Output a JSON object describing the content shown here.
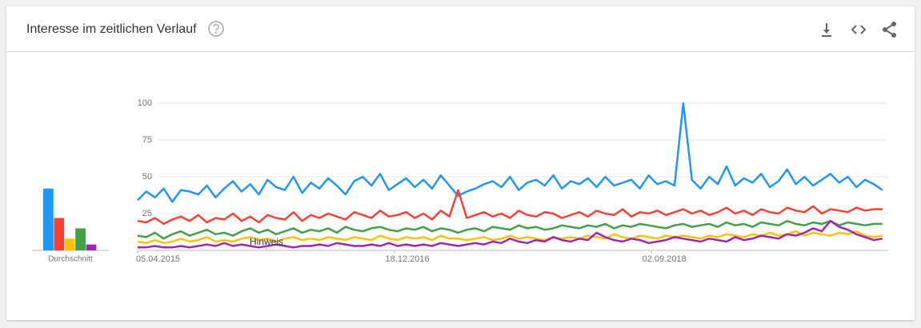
{
  "chart_data": [
    {
      "type": "bar",
      "xlabel": "Durchschnitt",
      "values": [
        42,
        22,
        8,
        15,
        4
      ],
      "colors": [
        "#2196f3",
        "#f44336",
        "#ffc107",
        "#43a047",
        "#9c27b0"
      ],
      "ylim": [
        0,
        100
      ]
    },
    {
      "type": "line",
      "title": "Interesse im zeitlichen Verlauf",
      "annotation": "Hinweis",
      "x": [
        0,
        3,
        6,
        9,
        12,
        15,
        18,
        21,
        24,
        27,
        30,
        33,
        36,
        39,
        42,
        45,
        48,
        51,
        54,
        57,
        60,
        63,
        66,
        69,
        72,
        75,
        78,
        81,
        84,
        87,
        90,
        93,
        96,
        99,
        102,
        105,
        108,
        111,
        114,
        117,
        120,
        123,
        126,
        129,
        132,
        135,
        138,
        141,
        144,
        147,
        150,
        153,
        156,
        159,
        162,
        165,
        168,
        171,
        174,
        177,
        180,
        183,
        186,
        189,
        192,
        195,
        198,
        201,
        204,
        207,
        210,
        213,
        216,
        219,
        222,
        225,
        228,
        231,
        234,
        237,
        240,
        243,
        246,
        249,
        252,
        255,
        258
      ],
      "xlim": [
        0,
        260
      ],
      "xticks": [
        {
          "value": 0,
          "label": "05.04.2015"
        },
        {
          "value": 89,
          "label": "18.12.2016"
        },
        {
          "value": 178,
          "label": "02.09.2018"
        }
      ],
      "ylim": [
        0,
        100
      ],
      "yticks": [
        25,
        50,
        75,
        100
      ],
      "grid": true,
      "series": [
        {
          "color": "#2196f3",
          "values": [
            34,
            40,
            36,
            42,
            33,
            41,
            40,
            38,
            44,
            36,
            42,
            47,
            40,
            45,
            38,
            48,
            43,
            41,
            50,
            39,
            46,
            42,
            49,
            44,
            38,
            47,
            50,
            44,
            52,
            41,
            45,
            49,
            43,
            48,
            42,
            51,
            44,
            37,
            40,
            42,
            45,
            47,
            43,
            50,
            41,
            46,
            48,
            44,
            51,
            42,
            47,
            45,
            49,
            43,
            50,
            44,
            46,
            48,
            42,
            51,
            45,
            47,
            44,
            100,
            48,
            42,
            50,
            45,
            57,
            44,
            49,
            46,
            52,
            43,
            47,
            55,
            45,
            50,
            44,
            48,
            52,
            46,
            50,
            43,
            48,
            45,
            41
          ]
        },
        {
          "color": "#f44336",
          "values": [
            20,
            19,
            22,
            18,
            21,
            23,
            20,
            24,
            19,
            22,
            21,
            25,
            20,
            23,
            19,
            24,
            22,
            21,
            26,
            20,
            24,
            22,
            25,
            23,
            21,
            26,
            24,
            22,
            27,
            23,
            24,
            26,
            22,
            25,
            21,
            27,
            23,
            41,
            22,
            24,
            26,
            23,
            25,
            22,
            27,
            24,
            23,
            26,
            25,
            22,
            24,
            26,
            23,
            27,
            25,
            24,
            28,
            23,
            26,
            25,
            27,
            24,
            26,
            28,
            25,
            27,
            24,
            26,
            29,
            25,
            27,
            24,
            28,
            26,
            25,
            29,
            27,
            26,
            30,
            25,
            28,
            27,
            26,
            29,
            27,
            28,
            28
          ]
        },
        {
          "color": "#ffc107",
          "values": [
            6,
            5,
            7,
            5,
            6,
            8,
            6,
            7,
            9,
            6,
            7,
            6,
            8,
            9,
            7,
            8,
            6,
            8,
            9,
            7,
            8,
            7,
            9,
            8,
            7,
            9,
            8,
            7,
            10,
            8,
            7,
            9,
            8,
            9,
            7,
            10,
            8,
            8,
            7,
            8,
            9,
            7,
            8,
            10,
            8,
            9,
            8,
            7,
            9,
            8,
            9,
            8,
            10,
            9,
            8,
            11,
            9,
            8,
            10,
            9,
            8,
            10,
            9,
            10,
            9,
            8,
            10,
            9,
            11,
            10,
            9,
            11,
            10,
            12,
            10,
            11,
            13,
            10,
            12,
            11,
            10,
            12,
            11,
            13,
            10,
            9,
            10
          ]
        },
        {
          "color": "#43a047",
          "values": [
            10,
            9,
            12,
            8,
            11,
            13,
            10,
            12,
            14,
            11,
            12,
            10,
            13,
            15,
            12,
            14,
            11,
            13,
            15,
            12,
            14,
            13,
            15,
            12,
            16,
            14,
            13,
            15,
            16,
            14,
            13,
            15,
            14,
            16,
            13,
            15,
            14,
            12,
            14,
            15,
            13,
            16,
            15,
            14,
            17,
            15,
            16,
            14,
            15,
            17,
            16,
            15,
            17,
            16,
            18,
            15,
            17,
            16,
            18,
            17,
            16,
            15,
            17,
            18,
            16,
            17,
            18,
            16,
            19,
            17,
            18,
            16,
            19,
            18,
            17,
            20,
            18,
            17,
            19,
            18,
            20,
            17,
            19,
            18,
            17,
            18,
            18
          ]
        },
        {
          "color": "#9c27b0",
          "values": [
            2,
            2,
            3,
            2,
            2,
            3,
            2,
            3,
            4,
            3,
            5,
            3,
            4,
            3,
            2,
            3,
            4,
            3,
            2,
            3,
            3,
            4,
            3,
            5,
            4,
            3,
            3,
            4,
            3,
            5,
            3,
            4,
            3,
            4,
            3,
            5,
            4,
            3,
            4,
            5,
            4,
            6,
            5,
            8,
            6,
            5,
            7,
            6,
            9,
            7,
            6,
            8,
            7,
            12,
            9,
            7,
            6,
            8,
            7,
            5,
            6,
            7,
            9,
            8,
            7,
            6,
            8,
            7,
            6,
            9,
            7,
            8,
            10,
            9,
            8,
            11,
            10,
            12,
            15,
            13,
            20,
            16,
            14,
            11,
            9,
            7,
            8
          ]
        }
      ]
    }
  ]
}
